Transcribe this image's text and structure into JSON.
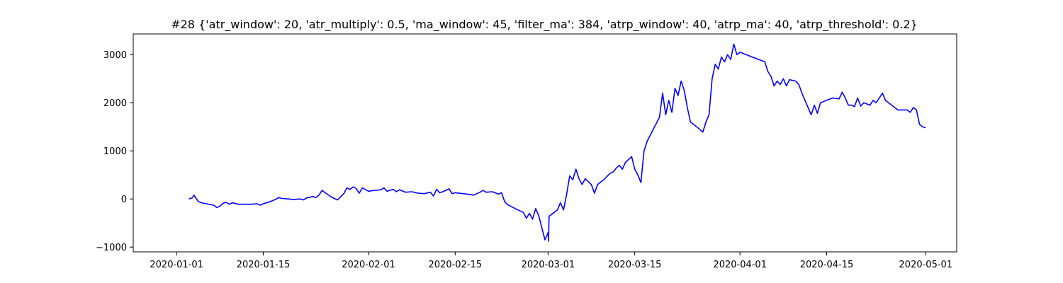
{
  "chart_data": {
    "type": "line",
    "title": "#28 {'atr_window': 20, 'atr_multiply': 0.5, 'ma_window': 45, 'filter_ma': 384, 'atrp_window': 40, 'atrp_ma': 40, 'atrp_threshold': 0.2}",
    "xlabel": "",
    "ylabel": "",
    "x_ticks": [
      "2020-01-01",
      "2020-01-15",
      "2020-02-01",
      "2020-02-15",
      "2020-03-01",
      "2020-03-15",
      "2020-04-01",
      "2020-04-15",
      "2020-05-01"
    ],
    "y_ticks": [
      -1000,
      0,
      1000,
      2000,
      3000
    ],
    "xlim": [
      "2019-12-25",
      "2020-05-06"
    ],
    "ylim": [
      -1100,
      3430
    ],
    "grid": false,
    "color": "#0000ff",
    "series": [
      {
        "points": [
          [
            "2020-01-03",
            0
          ],
          [
            "2020-01-03T12:00",
            20
          ],
          [
            "2020-01-03T20:00",
            80
          ],
          [
            "2020-01-04",
            40
          ],
          [
            "2020-01-04T12:00",
            -50
          ],
          [
            "2020-01-05",
            -80
          ],
          [
            "2020-01-07",
            -130
          ],
          [
            "2020-01-07T12:00",
            -180
          ],
          [
            "2020-01-08",
            -150
          ],
          [
            "2020-01-08T12:00",
            -90
          ],
          [
            "2020-01-09",
            -70
          ],
          [
            "2020-01-09T12:00",
            -110
          ],
          [
            "2020-01-10",
            -80
          ],
          [
            "2020-01-11",
            -110
          ],
          [
            "2020-01-13",
            -110
          ],
          [
            "2020-01-14",
            -100
          ],
          [
            "2020-01-14T12:00",
            -130
          ],
          [
            "2020-01-15",
            -100
          ],
          [
            "2020-01-16",
            -60
          ],
          [
            "2020-01-17",
            -10
          ],
          [
            "2020-01-17T12:00",
            30
          ],
          [
            "2020-01-18",
            10
          ],
          [
            "2020-01-19",
            0
          ],
          [
            "2020-01-20",
            -10
          ],
          [
            "2020-01-21",
            0
          ],
          [
            "2020-01-21T12:00",
            -20
          ],
          [
            "2020-01-22",
            20
          ],
          [
            "2020-01-23",
            50
          ],
          [
            "2020-01-23T12:00",
            30
          ],
          [
            "2020-01-24",
            80
          ],
          [
            "2020-01-24T12:00",
            180
          ],
          [
            "2020-01-25",
            130
          ],
          [
            "2020-01-26",
            40
          ],
          [
            "2020-01-27",
            -20
          ],
          [
            "2020-01-28",
            110
          ],
          [
            "2020-01-28T12:00",
            230
          ],
          [
            "2020-01-29",
            200
          ],
          [
            "2020-01-29T12:00",
            250
          ],
          [
            "2020-01-30",
            220
          ],
          [
            "2020-01-30T12:00",
            120
          ],
          [
            "2020-01-31",
            230
          ],
          [
            "2020-02-01",
            160
          ],
          [
            "2020-02-02",
            180
          ],
          [
            "2020-02-03",
            190
          ],
          [
            "2020-02-03T12:00",
            230
          ],
          [
            "2020-02-04",
            160
          ],
          [
            "2020-02-05",
            200
          ],
          [
            "2020-02-05T12:00",
            150
          ],
          [
            "2020-02-06",
            190
          ],
          [
            "2020-02-07",
            140
          ],
          [
            "2020-02-08",
            150
          ],
          [
            "2020-02-09",
            120
          ],
          [
            "2020-02-10",
            110
          ],
          [
            "2020-02-11",
            140
          ],
          [
            "2020-02-11T12:00",
            60
          ],
          [
            "2020-02-12",
            200
          ],
          [
            "2020-02-12T12:00",
            130
          ],
          [
            "2020-02-13",
            150
          ],
          [
            "2020-02-14",
            210
          ],
          [
            "2020-02-14T12:00",
            110
          ],
          [
            "2020-02-15",
            130
          ],
          [
            "2020-02-17",
            100
          ],
          [
            "2020-02-18",
            80
          ],
          [
            "2020-02-19",
            140
          ],
          [
            "2020-02-19T12:00",
            180
          ],
          [
            "2020-02-20",
            140
          ],
          [
            "2020-02-21",
            150
          ],
          [
            "2020-02-22",
            100
          ],
          [
            "2020-02-22T12:00",
            130
          ],
          [
            "2020-02-23",
            -60
          ],
          [
            "2020-02-23T12:00",
            -120
          ],
          [
            "2020-02-25",
            -220
          ],
          [
            "2020-02-26",
            -280
          ],
          [
            "2020-02-26T12:00",
            -400
          ],
          [
            "2020-02-27",
            -300
          ],
          [
            "2020-02-27T12:00",
            -420
          ],
          [
            "2020-02-28",
            -200
          ],
          [
            "2020-02-28T12:00",
            -350
          ],
          [
            "2020-02-29",
            -600
          ],
          [
            "2020-02-29T12:00",
            -850
          ],
          [
            "2020-03-01",
            -700
          ],
          [
            "2020-03-01T02:00",
            -880
          ],
          [
            "2020-03-01T04:00",
            -360
          ],
          [
            "2020-03-02",
            -280
          ],
          [
            "2020-03-02T12:00",
            -230
          ],
          [
            "2020-03-03",
            -80
          ],
          [
            "2020-03-03T12:00",
            -230
          ],
          [
            "2020-03-04",
            100
          ],
          [
            "2020-03-04T12:00",
            480
          ],
          [
            "2020-03-05",
            400
          ],
          [
            "2020-03-05T12:00",
            620
          ],
          [
            "2020-03-06",
            420
          ],
          [
            "2020-03-06T12:00",
            300
          ],
          [
            "2020-03-07",
            420
          ],
          [
            "2020-03-08",
            300
          ],
          [
            "2020-03-08T12:00",
            120
          ],
          [
            "2020-03-09",
            300
          ],
          [
            "2020-03-10",
            400
          ],
          [
            "2020-03-11",
            530
          ],
          [
            "2020-03-11T12:00",
            560
          ],
          [
            "2020-03-12",
            640
          ],
          [
            "2020-03-12T12:00",
            700
          ],
          [
            "2020-03-13",
            620
          ],
          [
            "2020-03-13T12:00",
            760
          ],
          [
            "2020-03-14",
            820
          ],
          [
            "2020-03-14T12:00",
            880
          ],
          [
            "2020-03-15",
            620
          ],
          [
            "2020-03-15T12:00",
            500
          ],
          [
            "2020-03-16",
            340
          ],
          [
            "2020-03-16T12:00",
            1000
          ],
          [
            "2020-03-17",
            1200
          ],
          [
            "2020-03-18",
            1450
          ],
          [
            "2020-03-19",
            1700
          ],
          [
            "2020-03-19T12:00",
            2200
          ],
          [
            "2020-03-20",
            1750
          ],
          [
            "2020-03-20T12:00",
            2050
          ],
          [
            "2020-03-21",
            1800
          ],
          [
            "2020-03-21T12:00",
            2300
          ],
          [
            "2020-03-22",
            2150
          ],
          [
            "2020-03-22T12:00",
            2450
          ],
          [
            "2020-03-23",
            2250
          ],
          [
            "2020-03-23T12:00",
            1900
          ],
          [
            "2020-03-24",
            1600
          ],
          [
            "2020-03-25",
            1500
          ],
          [
            "2020-03-26",
            1390
          ],
          [
            "2020-03-26T12:00",
            1600
          ],
          [
            "2020-03-27",
            1750
          ],
          [
            "2020-03-27T12:00",
            2500
          ],
          [
            "2020-03-28",
            2800
          ],
          [
            "2020-03-28T12:00",
            2700
          ],
          [
            "2020-03-29",
            2950
          ],
          [
            "2020-03-29T12:00",
            2850
          ],
          [
            "2020-03-30",
            3000
          ],
          [
            "2020-03-30T12:00",
            2900
          ],
          [
            "2020-03-31",
            3220
          ],
          [
            "2020-03-31T12:00",
            3000
          ],
          [
            "2020-04-01",
            3050
          ],
          [
            "2020-04-02",
            3000
          ],
          [
            "2020-04-03",
            2950
          ],
          [
            "2020-04-04",
            2900
          ],
          [
            "2020-04-05",
            2850
          ],
          [
            "2020-04-05T12:00",
            2650
          ],
          [
            "2020-04-06",
            2550
          ],
          [
            "2020-04-06T12:00",
            2350
          ],
          [
            "2020-04-07",
            2450
          ],
          [
            "2020-04-07T12:00",
            2380
          ],
          [
            "2020-04-08",
            2500
          ],
          [
            "2020-04-08T12:00",
            2350
          ],
          [
            "2020-04-09",
            2480
          ],
          [
            "2020-04-10",
            2450
          ],
          [
            "2020-04-10T12:00",
            2380
          ],
          [
            "2020-04-11",
            2200
          ],
          [
            "2020-04-11T12:00",
            2050
          ],
          [
            "2020-04-12",
            1900
          ],
          [
            "2020-04-12T12:00",
            1750
          ],
          [
            "2020-04-13",
            1950
          ],
          [
            "2020-04-13T12:00",
            1780
          ],
          [
            "2020-04-14",
            2000
          ],
          [
            "2020-04-15",
            2050
          ],
          [
            "2020-04-16",
            2100
          ],
          [
            "2020-04-17",
            2080
          ],
          [
            "2020-04-17T12:00",
            2220
          ],
          [
            "2020-04-18",
            2100
          ],
          [
            "2020-04-18T12:00",
            1950
          ],
          [
            "2020-04-19",
            1950
          ],
          [
            "2020-04-19T12:00",
            1920
          ],
          [
            "2020-04-20",
            2100
          ],
          [
            "2020-04-20T12:00",
            1930
          ],
          [
            "2020-04-21",
            2000
          ],
          [
            "2020-04-22",
            1950
          ],
          [
            "2020-04-22T12:00",
            2050
          ],
          [
            "2020-04-23",
            2000
          ],
          [
            "2020-04-23T12:00",
            2100
          ],
          [
            "2020-04-24",
            2200
          ],
          [
            "2020-04-24T12:00",
            2050
          ],
          [
            "2020-04-25",
            2000
          ],
          [
            "2020-04-26",
            1900
          ],
          [
            "2020-04-26T12:00",
            1850
          ],
          [
            "2020-04-27",
            1850
          ],
          [
            "2020-04-28",
            1850
          ],
          [
            "2020-04-28T12:00",
            1800
          ],
          [
            "2020-04-29",
            1900
          ],
          [
            "2020-04-29T12:00",
            1850
          ],
          [
            "2020-04-30",
            1550
          ],
          [
            "2020-04-30T12:00",
            1500
          ],
          [
            "2020-05-01",
            1480
          ]
        ]
      }
    ]
  }
}
